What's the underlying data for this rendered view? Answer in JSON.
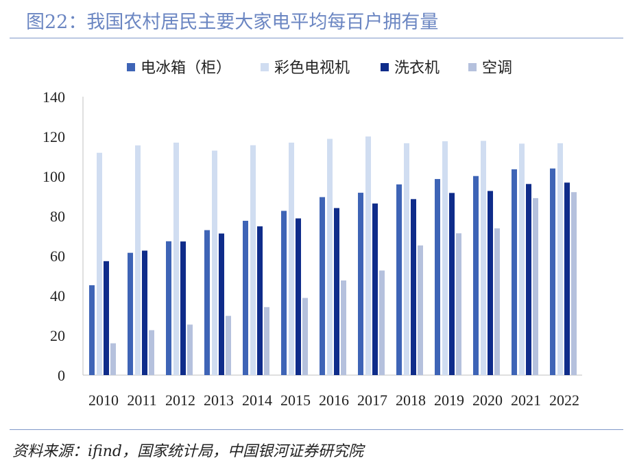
{
  "title": "图22：我国农村居民主要大家电平均每百户拥有量",
  "source": "资料来源：ifind，国家统计局，中国银河证券研究院",
  "chart_data": {
    "type": "bar",
    "title": "我国农村居民主要大家电平均每百户拥有量",
    "xlabel": "",
    "ylabel": "",
    "ylim": [
      0,
      140
    ],
    "yticks": [
      0,
      20,
      40,
      60,
      80,
      100,
      120,
      140
    ],
    "grid": false,
    "legend_position": "top",
    "categories": [
      "2010",
      "2011",
      "2012",
      "2013",
      "2014",
      "2015",
      "2016",
      "2017",
      "2018",
      "2019",
      "2020",
      "2021",
      "2022"
    ],
    "series": [
      {
        "name": "电冰箱（柜）",
        "color": "#3e64b6",
        "values": [
          45.2,
          61.5,
          67.3,
          72.9,
          77.6,
          82.6,
          89.5,
          91.7,
          95.9,
          98.6,
          100.1,
          103.5,
          103.9
        ]
      },
      {
        "name": "彩色电视机",
        "color": "#d0ddf1",
        "values": [
          111.8,
          115.5,
          116.9,
          112.9,
          115.6,
          116.9,
          118.8,
          120.0,
          116.6,
          117.6,
          117.8,
          116.4,
          116.6
        ]
      },
      {
        "name": "洗衣机",
        "color": "#0f2c8a",
        "values": [
          57.3,
          62.6,
          67.2,
          71.2,
          74.8,
          78.8,
          84.0,
          86.3,
          88.5,
          91.6,
          92.6,
          96.1,
          96.8
        ]
      },
      {
        "name": "空调",
        "color": "#b5c1dd",
        "values": [
          16.0,
          22.6,
          25.4,
          29.8,
          34.2,
          38.8,
          47.6,
          52.6,
          65.2,
          71.3,
          73.8,
          89.0,
          92.0
        ]
      }
    ]
  }
}
